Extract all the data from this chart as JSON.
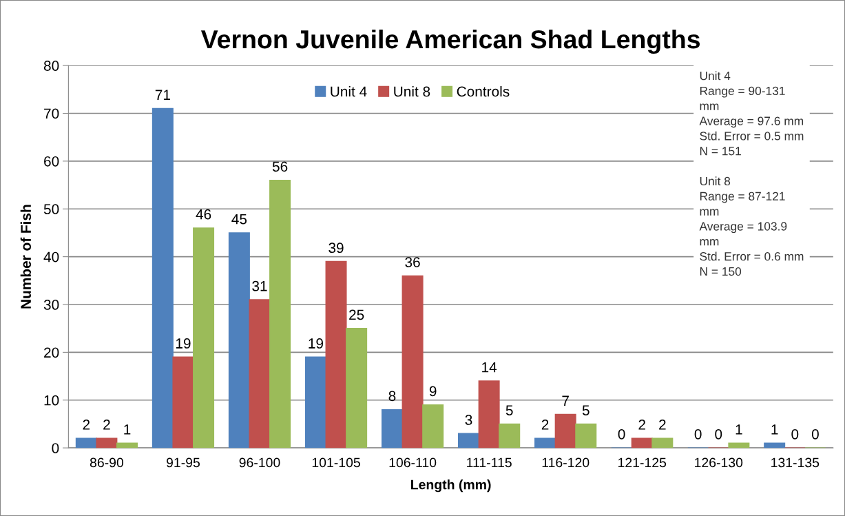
{
  "chart_data": {
    "type": "bar",
    "title": "Vernon Juvenile American Shad Lengths",
    "xlabel": "Length (mm)",
    "ylabel": "Number of Fish",
    "categories": [
      "86-90",
      "91-95",
      "96-100",
      "101-105",
      "106-110",
      "111-115",
      "116-120",
      "121-125",
      "126-130",
      "131-135"
    ],
    "series": [
      {
        "name": "Unit 4",
        "color": "#4f81bd",
        "values": [
          2,
          71,
          45,
          19,
          8,
          3,
          2,
          0,
          0,
          1
        ]
      },
      {
        "name": "Unit 8",
        "color": "#c0504d",
        "values": [
          2,
          19,
          31,
          39,
          36,
          14,
          7,
          2,
          0,
          0
        ]
      },
      {
        "name": "Controls",
        "color": "#9bbb59",
        "values": [
          1,
          46,
          56,
          25,
          9,
          5,
          5,
          2,
          1,
          0
        ]
      }
    ],
    "ylim": [
      0,
      80
    ],
    "yticks": [
      0,
      10,
      20,
      30,
      40,
      50,
      60,
      70,
      80
    ],
    "grid": "y",
    "legend": "top",
    "data_labels": true,
    "annotations": [
      "Unit 4\nRange = 90-131\nmm\nAverage = 97.6 mm\nStd. Error = 0.5 mm\nN = 151\n\nUnit 8\nRange = 87-121\nmm\nAverage = 103.9\nmm\nStd. Error = 0.6 mm\nN = 150"
    ]
  }
}
